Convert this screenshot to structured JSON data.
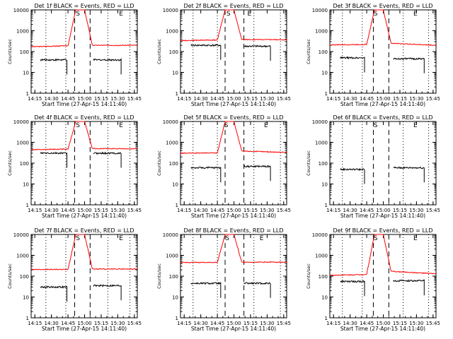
{
  "figure": {
    "xlabel": "Start Time (27-Apr-15 14:11:40)",
    "ylabel": "Counts/sec",
    "x_tick_labels": [
      "14:15",
      "14:30",
      "14:45",
      "15:00",
      "15:15",
      "15:30",
      "15:45"
    ],
    "y_tick_labels": [
      "1",
      "10",
      "100",
      "1000",
      "10000"
    ]
  },
  "chart_data": [
    {
      "type": "line",
      "title": "Det 1f BLACK = Events, RED = LLD",
      "xlabel": "Start Time (27-Apr-15 14:11:40)",
      "ylabel": "Counts/sec",
      "ylim": [
        1,
        10000
      ],
      "yscale": "log",
      "grid": false,
      "x": [
        "14:12",
        "14:45",
        "14:52",
        "15:00",
        "15:07",
        "15:47"
      ],
      "markers": {
        "S": "14:54",
        "E": "15:33"
      },
      "dotted_lines": [
        "14:25",
        "14:43",
        "15:21",
        "15:41"
      ],
      "dashed_lines": [
        "14:51",
        "15:05"
      ],
      "series": [
        {
          "name": "RED",
          "color": "#ff0000",
          "values": [
            170,
            190,
            10000,
            10000,
            200,
            200
          ]
        },
        {
          "name": "BLACK",
          "color": "#000000",
          "values": [
            40,
            40,
            null,
            null,
            40,
            40
          ],
          "segments": [
            [
              "14:20",
              "14:44"
            ],
            [
              "15:08",
              "15:33"
            ]
          ]
        }
      ]
    },
    {
      "type": "line",
      "title": "Det 2f BLACK = Events, RED = LLD",
      "xlabel": "Start Time (27-Apr-15 14:11:40)",
      "ylabel": "Counts/sec",
      "ylim": [
        1,
        10000
      ],
      "yscale": "log",
      "grid": false,
      "x": [
        "14:12",
        "14:45",
        "14:52",
        "15:00",
        "15:07",
        "15:47"
      ],
      "markers": {
        "S": "14:55",
        "E": "15:14"
      },
      "dotted_lines": [
        "14:23",
        "14:45",
        "15:18",
        "15:42"
      ],
      "dashed_lines": [
        "14:52",
        "15:09"
      ],
      "series": [
        {
          "name": "RED",
          "color": "#ff0000",
          "values": [
            340,
            360,
            10000,
            10000,
            380,
            370
          ]
        },
        {
          "name": "BLACK",
          "color": "#000000",
          "values": [
            200,
            200,
            null,
            null,
            180,
            180
          ],
          "segments": [
            [
              "14:21",
              "14:48"
            ],
            [
              "15:09",
              "15:33"
            ]
          ]
        }
      ]
    },
    {
      "type": "line",
      "title": "Det 3f BLACK = Events, RED = LLD",
      "xlabel": "Start Time (27-Apr-15 14:11:40)",
      "ylabel": "Counts/sec",
      "ylim": [
        1,
        10000
      ],
      "yscale": "log",
      "grid": false,
      "x": [
        "14:12",
        "14:45",
        "14:52",
        "15:00",
        "15:07",
        "15:47"
      ],
      "markers": {
        "S": "14:53",
        "E": "15:29"
      },
      "dotted_lines": [
        "14:23",
        "14:41",
        "15:18",
        "15:41"
      ],
      "dashed_lines": [
        "14:51",
        "15:05"
      ],
      "series": [
        {
          "name": "RED",
          "color": "#ff0000",
          "values": [
            210,
            220,
            10000,
            10000,
            250,
            200
          ]
        },
        {
          "name": "BLACK",
          "color": "#000000",
          "values": [
            50,
            50,
            null,
            null,
            45,
            45
          ],
          "segments": [
            [
              "14:21",
              "14:43"
            ],
            [
              "15:09",
              "15:37"
            ]
          ]
        }
      ]
    },
    {
      "type": "line",
      "title": "Det 4f BLACK = Events, RED = LLD",
      "xlabel": "Start Time (27-Apr-15 14:11:40)",
      "ylabel": "Counts/sec",
      "ylim": [
        1,
        10000
      ],
      "yscale": "log",
      "grid": false,
      "x": [
        "14:12",
        "14:45",
        "14:52",
        "15:00",
        "15:07",
        "15:47"
      ],
      "markers": {
        "S": "14:54",
        "E": "15:33"
      },
      "dotted_lines": [
        "14:25",
        "14:43",
        "15:21",
        "15:41"
      ],
      "dashed_lines": [
        "14:51",
        "15:05"
      ],
      "series": [
        {
          "name": "RED",
          "color": "#ff0000",
          "values": [
            450,
            470,
            10000,
            10000,
            500,
            490
          ]
        },
        {
          "name": "BLACK",
          "color": "#000000",
          "values": [
            300,
            300,
            null,
            null,
            300,
            300
          ],
          "segments": [
            [
              "14:20",
              "14:44"
            ],
            [
              "15:08",
              "15:33"
            ]
          ]
        }
      ]
    },
    {
      "type": "line",
      "title": "Det 5f BLACK = Events, RED = LLD",
      "xlabel": "Start Time (27-Apr-15 14:11:40)",
      "ylabel": "Counts/sec",
      "ylim": [
        1,
        10000
      ],
      "yscale": "log",
      "grid": false,
      "x": [
        "14:12",
        "14:45",
        "14:52",
        "15:00",
        "15:07",
        "15:47"
      ],
      "markers": {
        "S": "14:53",
        "E": "15:29"
      },
      "dotted_lines": [
        "14:23",
        "14:45",
        "15:18",
        "15:42"
      ],
      "dashed_lines": [
        "14:52",
        "15:09"
      ],
      "series": [
        {
          "name": "RED",
          "color": "#ff0000",
          "values": [
            300,
            310,
            10000,
            10000,
            380,
            330
          ]
        },
        {
          "name": "BLACK",
          "color": "#000000",
          "values": [
            60,
            60,
            null,
            null,
            70,
            70
          ],
          "segments": [
            [
              "14:21",
              "14:48"
            ],
            [
              "15:09",
              "15:33"
            ]
          ]
        }
      ]
    },
    {
      "type": "line",
      "title": "Det 6f BLACK = Events, RED = LLD",
      "xlabel": "Start Time (27-Apr-15 14:11:40)",
      "ylabel": "Counts/sec",
      "ylim": [
        1,
        10000
      ],
      "yscale": "log",
      "grid": false,
      "x": [
        "14:12",
        "14:45",
        "15:07",
        "15:47"
      ],
      "markers": {
        "S": "14:53",
        "E": "15:29"
      },
      "dotted_lines": [
        "14:23",
        "14:41",
        "15:18",
        "15:41"
      ],
      "dashed_lines": [
        "14:51",
        "15:05"
      ],
      "series": [
        {
          "name": "BLACK",
          "color": "#000000",
          "values": [
            50,
            55,
            50,
            60
          ],
          "segments": [
            [
              "14:21",
              "14:43"
            ],
            [
              "15:09",
              "15:37"
            ]
          ]
        }
      ]
    },
    {
      "type": "line",
      "title": "Det 7f BLACK = Events, RED = LLD",
      "xlabel": "Start Time (27-Apr-15 14:11:40)",
      "ylabel": "Counts/sec",
      "ylim": [
        1,
        10000
      ],
      "yscale": "log",
      "grid": false,
      "x": [
        "14:12",
        "14:45",
        "14:52",
        "15:00",
        "15:07",
        "15:47"
      ],
      "markers": {
        "S": "14:54",
        "E": "15:33"
      },
      "dotted_lines": [
        "14:25",
        "14:43",
        "15:21",
        "15:41"
      ],
      "dashed_lines": [
        "14:51",
        "15:05"
      ],
      "series": [
        {
          "name": "RED",
          "color": "#ff0000",
          "values": [
            210,
            210,
            10000,
            10000,
            220,
            220
          ]
        },
        {
          "name": "BLACK",
          "color": "#000000",
          "values": [
            30,
            30,
            null,
            null,
            35,
            35
          ],
          "segments": [
            [
              "14:20",
              "14:44"
            ],
            [
              "15:08",
              "15:33"
            ]
          ]
        }
      ]
    },
    {
      "type": "line",
      "title": "Det 8f BLACK = Events, RED = LLD",
      "xlabel": "Start Time (27-Apr-15 14:11:40)",
      "ylabel": "Counts/sec",
      "ylim": [
        1,
        10000
      ],
      "yscale": "log",
      "grid": false,
      "x": [
        "14:12",
        "14:45",
        "14:52",
        "15:00",
        "15:07",
        "15:47"
      ],
      "markers": {
        "S": "14:54",
        "E": "15:25"
      },
      "dotted_lines": [
        "14:23",
        "14:45",
        "15:18",
        "15:42"
      ],
      "dashed_lines": [
        "14:52",
        "15:09"
      ],
      "series": [
        {
          "name": "RED",
          "color": "#ff0000",
          "values": [
            450,
            460,
            10000,
            10000,
            470,
            470
          ]
        },
        {
          "name": "BLACK",
          "color": "#000000",
          "values": [
            45,
            45,
            null,
            null,
            45,
            45
          ],
          "segments": [
            [
              "14:21",
              "14:48"
            ],
            [
              "15:09",
              "15:33"
            ]
          ]
        }
      ]
    },
    {
      "type": "line",
      "title": "Det 9f BLACK = Events, RED = LLD",
      "xlabel": "Start Time (27-Apr-15 14:11:40)",
      "ylabel": "Counts/sec",
      "ylim": [
        1,
        10000
      ],
      "yscale": "log",
      "grid": false,
      "x": [
        "14:12",
        "14:45",
        "14:52",
        "15:00",
        "15:07",
        "15:47"
      ],
      "markers": {
        "S": "14:53",
        "E": "15:29"
      },
      "dotted_lines": [
        "14:23",
        "14:41",
        "15:18",
        "15:41"
      ],
      "dashed_lines": [
        "14:51",
        "15:05"
      ],
      "series": [
        {
          "name": "RED",
          "color": "#ff0000",
          "values": [
            110,
            120,
            10000,
            10000,
            170,
            130
          ]
        },
        {
          "name": "BLACK",
          "color": "#000000",
          "values": [
            55,
            55,
            null,
            null,
            70,
            60
          ],
          "segments": [
            [
              "14:21",
              "14:43"
            ],
            [
              "15:09",
              "15:37"
            ]
          ]
        }
      ]
    }
  ]
}
